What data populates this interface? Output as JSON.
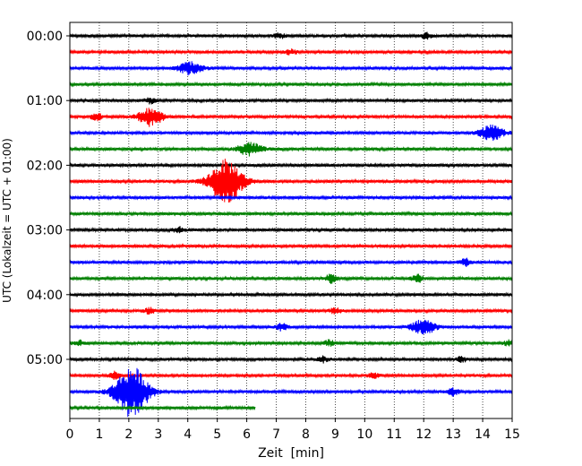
{
  "chart_data": {
    "type": "line",
    "title": "",
    "xlabel": "Zeit  [min]",
    "ylabel": "UTC (Lokalzeit = UTC + 01:00)",
    "xlim": [
      0,
      15
    ],
    "x_ticks": [
      "0",
      "1",
      "2",
      "3",
      "4",
      "5",
      "6",
      "7",
      "8",
      "9",
      "10",
      "11",
      "12",
      "13",
      "14",
      "15"
    ],
    "y_ticks": [
      "00:00",
      "01:00",
      "02:00",
      "03:00",
      "04:00",
      "05:00"
    ],
    "trace_interval_min": 15,
    "grid": "x-dotted",
    "colors": [
      "#000000",
      "#ff0000",
      "#0000ff",
      "#008000"
    ],
    "traces": [
      {
        "start": "00:00",
        "color": "#000000",
        "end_min": 15,
        "events": [
          {
            "t": 7.1,
            "amp": 3
          },
          {
            "t": 12.1,
            "amp": 3
          }
        ]
      },
      {
        "start": "00:15",
        "color": "#ff0000",
        "end_min": 15,
        "events": [
          {
            "t": 7.5,
            "amp": 3
          }
        ]
      },
      {
        "start": "00:30",
        "color": "#0000ff",
        "end_min": 15,
        "events": [
          {
            "t": 4.1,
            "amp": 7
          }
        ]
      },
      {
        "start": "00:45",
        "color": "#008000",
        "end_min": 15,
        "events": []
      },
      {
        "start": "01:00",
        "color": "#000000",
        "end_min": 15,
        "events": [
          {
            "t": 2.7,
            "amp": 3
          }
        ]
      },
      {
        "start": "01:15",
        "color": "#ff0000",
        "end_min": 15,
        "events": [
          {
            "t": 0.9,
            "amp": 4
          },
          {
            "t": 2.75,
            "amp": 10
          }
        ]
      },
      {
        "start": "01:30",
        "color": "#0000ff",
        "end_min": 15,
        "events": [
          {
            "t": 14.3,
            "amp": 8
          }
        ]
      },
      {
        "start": "01:45",
        "color": "#008000",
        "end_min": 15,
        "events": [
          {
            "t": 6.1,
            "amp": 7
          }
        ]
      },
      {
        "start": "02:00",
        "color": "#000000",
        "end_min": 15,
        "events": []
      },
      {
        "start": "02:15",
        "color": "#ff0000",
        "end_min": 15,
        "events": [
          {
            "t": 5.3,
            "amp": 24
          }
        ]
      },
      {
        "start": "02:30",
        "color": "#0000ff",
        "end_min": 15,
        "events": []
      },
      {
        "start": "02:45",
        "color": "#008000",
        "end_min": 15,
        "events": []
      },
      {
        "start": "03:00",
        "color": "#000000",
        "end_min": 15,
        "events": [
          {
            "t": 3.7,
            "amp": 3
          }
        ]
      },
      {
        "start": "03:15",
        "color": "#ff0000",
        "end_min": 15,
        "events": []
      },
      {
        "start": "03:30",
        "color": "#0000ff",
        "end_min": 15,
        "events": [
          {
            "t": 13.4,
            "amp": 4
          }
        ]
      },
      {
        "start": "03:45",
        "color": "#008000",
        "end_min": 15,
        "events": [
          {
            "t": 8.85,
            "amp": 5
          },
          {
            "t": 11.8,
            "amp": 4
          }
        ]
      },
      {
        "start": "04:00",
        "color": "#000000",
        "end_min": 15,
        "events": []
      },
      {
        "start": "04:15",
        "color": "#ff0000",
        "end_min": 15,
        "events": [
          {
            "t": 2.7,
            "amp": 3
          },
          {
            "t": 9.0,
            "amp": 3
          }
        ]
      },
      {
        "start": "04:30",
        "color": "#0000ff",
        "end_min": 15,
        "events": [
          {
            "t": 7.2,
            "amp": 4
          },
          {
            "t": 12.0,
            "amp": 8
          }
        ]
      },
      {
        "start": "04:45",
        "color": "#008000",
        "end_min": 15,
        "events": [
          {
            "t": 0.3,
            "amp": 3
          },
          {
            "t": 8.8,
            "amp": 3
          },
          {
            "t": 14.9,
            "amp": 3
          }
        ]
      },
      {
        "start": "05:00",
        "color": "#000000",
        "end_min": 15,
        "events": [
          {
            "t": 8.6,
            "amp": 3
          },
          {
            "t": 13.3,
            "amp": 3
          }
        ]
      },
      {
        "start": "05:15",
        "color": "#ff0000",
        "end_min": 15,
        "events": [
          {
            "t": 1.5,
            "amp": 4
          },
          {
            "t": 10.3,
            "amp": 3
          }
        ]
      },
      {
        "start": "05:30",
        "color": "#0000ff",
        "end_min": 15,
        "events": [
          {
            "t": 2.1,
            "amp": 28
          },
          {
            "t": 13.0,
            "amp": 4
          }
        ]
      },
      {
        "start": "05:45",
        "color": "#008000",
        "end_min": 6.3,
        "events": []
      }
    ]
  }
}
